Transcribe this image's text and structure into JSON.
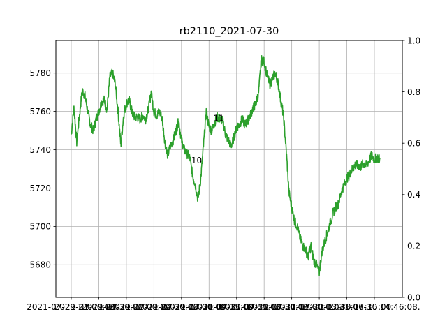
{
  "chart_data": {
    "type": "line",
    "title": "rb2110_2021-07-30",
    "xlabel": "",
    "ylabel": "",
    "ylim": [
      5663,
      5797
    ],
    "y_ticks": [
      5680,
      5700,
      5720,
      5740,
      5760,
      5780
    ],
    "y2lim": [
      0.0,
      1.0
    ],
    "y2_ticks": [
      "0.0",
      "0.2",
      "0.4",
      "0.6",
      "0.8",
      "1.0"
    ],
    "grid": true,
    "x_tick_labels": [
      "2021-07-29 21:00:00",
      "2021-07-29 21:30:00",
      "2021-07-29 22:00:00",
      "2021-07-29 22:30:00",
      "2021-07-29 23:00:00",
      "2021-07-30 09:15:00",
      "2021-07-30 09:45:00",
      "2021-07-30 10:30:00",
      "2021-07-30 11:00:00",
      "2021-07-30 13:45:00",
      "2021-07-30 14:15:00",
      "2021-07-30 14:46:08."
    ],
    "annotations": [
      {
        "text": "10",
        "x": 4.55,
        "y": 5733
      },
      {
        "text": "11",
        "x": 5.35,
        "y": 5755
      }
    ],
    "series": [
      {
        "color": "#2ca02c",
        "x": [
          0,
          0.1,
          0.2,
          0.3,
          0.4,
          0.5,
          0.6,
          0.7,
          0.8,
          0.9,
          1.0,
          1.1,
          1.2,
          1.3,
          1.4,
          1.5,
          1.6,
          1.7,
          1.8,
          1.9,
          2.0,
          2.1,
          2.2,
          2.3,
          2.4,
          2.5,
          2.6,
          2.7,
          2.8,
          2.9,
          3.0,
          3.1,
          3.2,
          3.3,
          3.4,
          3.5,
          3.6,
          3.7,
          3.8,
          3.9,
          4.0,
          4.1,
          4.2,
          4.3,
          4.4,
          4.5,
          4.6,
          4.7,
          4.8,
          4.9,
          5.0,
          5.1,
          5.2,
          5.3,
          5.4,
          5.5,
          5.6,
          5.7,
          5.8,
          5.9,
          6.0,
          6.1,
          6.2,
          6.3,
          6.4,
          6.5,
          6.6,
          6.7,
          6.8,
          6.9,
          7.0,
          7.1,
          7.2,
          7.3,
          7.4,
          7.5,
          7.6,
          7.7,
          7.8,
          7.9,
          8.0,
          8.1,
          8.2,
          8.3,
          8.4,
          8.5,
          8.6,
          8.7,
          8.8,
          8.9,
          9.0,
          9.1,
          9.2,
          9.3,
          9.4,
          9.5,
          9.6,
          9.7,
          9.8,
          9.9,
          10.0,
          10.1,
          10.2,
          10.3,
          10.4,
          10.5,
          10.6,
          10.7,
          10.8,
          10.9,
          11.0,
          11.1,
          11.2
        ],
        "y": [
          5748,
          5762,
          5744,
          5758,
          5771,
          5768,
          5760,
          5753,
          5750,
          5756,
          5760,
          5765,
          5766,
          5761,
          5778,
          5780,
          5774,
          5760,
          5742,
          5758,
          5764,
          5766,
          5760,
          5757,
          5757,
          5756,
          5758,
          5756,
          5761,
          5770,
          5760,
          5758,
          5760,
          5756,
          5744,
          5737,
          5742,
          5745,
          5750,
          5755,
          5745,
          5740,
          5738,
          5736,
          5727,
          5722,
          5714,
          5725,
          5742,
          5760,
          5752,
          5750,
          5754,
          5757,
          5756,
          5755,
          5748,
          5745,
          5742,
          5746,
          5752,
          5753,
          5756,
          5753,
          5755,
          5758,
          5762,
          5764,
          5770,
          5787,
          5786,
          5779,
          5774,
          5777,
          5780,
          5775,
          5766,
          5758,
          5740,
          5718,
          5710,
          5703,
          5700,
          5694,
          5690,
          5688,
          5684,
          5690,
          5682,
          5680,
          5676,
          5687,
          5692,
          5697,
          5702,
          5707,
          5710,
          5712,
          5718,
          5722,
          5725,
          5727,
          5730,
          5732,
          5732,
          5731,
          5733,
          5732,
          5734,
          5737,
          5735,
          5736,
          5735
        ]
      }
    ]
  }
}
